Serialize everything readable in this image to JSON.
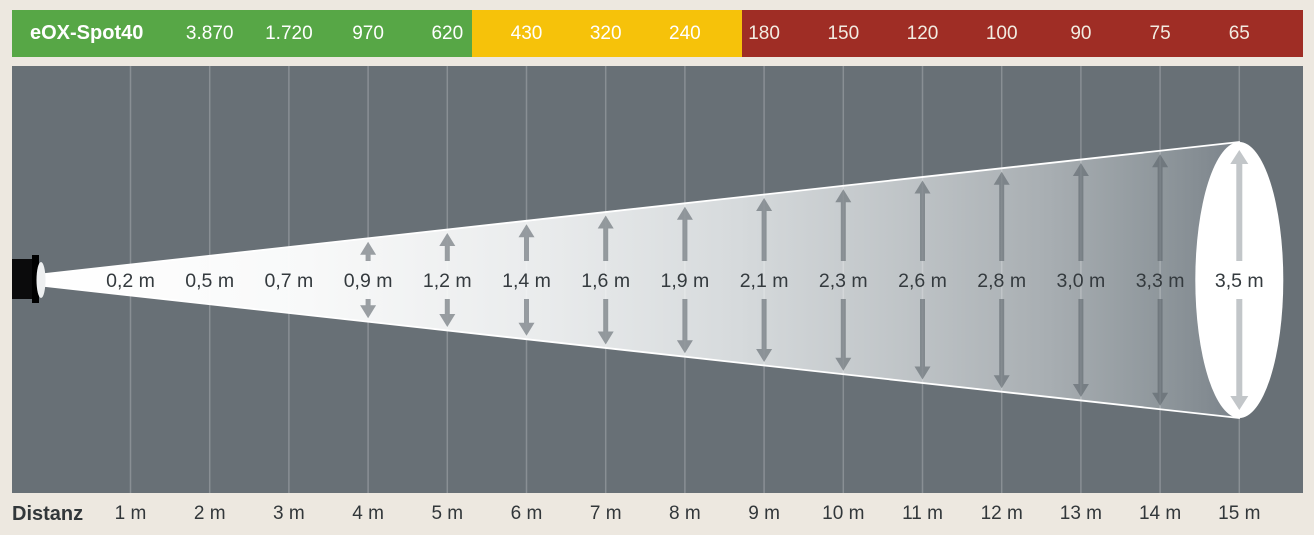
{
  "header": {
    "product_label": "eOX-Spot40"
  },
  "footer": {
    "axis_label": "Distanz"
  },
  "colors": {
    "page_bg": "#EDE8E0",
    "panel_bg": "#687076",
    "zone_green": "#57A746",
    "zone_yellow": "#F6C20A",
    "zone_red": "#9F2D25",
    "value_text": "#FFFFFF",
    "value_text_on_red": "#F2ECE2",
    "beam_label_text": "#343A3E",
    "distance_label_text": "#32373A",
    "arrow_gray": "rgba(92,100,107,0.60)",
    "arrow_on_spot": "#C2C6C9",
    "gridline": "rgba(255,255,255,0.22)",
    "spot_white": "#FFFFFF",
    "fixture_black": "#0B0B0C",
    "lens_white": "#EDEFF0",
    "beam_edge_white": "#FFFFFF"
  },
  "chart_data": {
    "type": "table",
    "title": "eOX-Spot40 illuminance (lux) and beam diameter vs distance",
    "x_label": "Distanz",
    "distances_m": [
      1,
      2,
      3,
      4,
      5,
      6,
      7,
      8,
      9,
      10,
      11,
      12,
      13,
      14,
      15
    ],
    "distance_labels": [
      "1 m",
      "2 m",
      "3 m",
      "4 m",
      "5 m",
      "6 m",
      "7 m",
      "8 m",
      "9 m",
      "10 m",
      "11 m",
      "12 m",
      "13 m",
      "14 m",
      "15 m"
    ],
    "illuminance_lux": [
      null,
      3870,
      1720,
      970,
      620,
      430,
      320,
      240,
      180,
      150,
      120,
      100,
      90,
      75,
      65
    ],
    "illuminance_labels": [
      "",
      "3.870",
      "1.720",
      "970",
      "620",
      "430",
      "320",
      "240",
      "180",
      "150",
      "120",
      "100",
      "90",
      "75",
      "65"
    ],
    "beam_diameter_m": [
      0.2,
      0.5,
      0.7,
      0.9,
      1.2,
      1.4,
      1.6,
      1.9,
      2.1,
      2.3,
      2.6,
      2.8,
      3.0,
      3.3,
      3.5
    ],
    "beam_diameter_labels": [
      "0,2 m",
      "0,5 m",
      "0,7 m",
      "0,9 m",
      "1,2 m",
      "1,4 m",
      "1,6 m",
      "1,9 m",
      "2,1 m",
      "2,3 m",
      "2,6 m",
      "2,8 m",
      "3,0 m",
      "3,3 m",
      "3,5 m"
    ],
    "zones": [
      {
        "key": "green",
        "start_m": 0.0,
        "end_m": 5.31
      },
      {
        "key": "yellow",
        "start_m": 5.31,
        "end_m": 8.72
      },
      {
        "key": "red",
        "start_m": 8.72,
        "end_m": 15.8
      }
    ],
    "arrows_at_m": [
      4,
      5,
      6,
      7,
      8,
      9,
      10,
      11,
      12,
      13,
      14,
      15
    ],
    "legend_position": "top",
    "grid": true
  }
}
